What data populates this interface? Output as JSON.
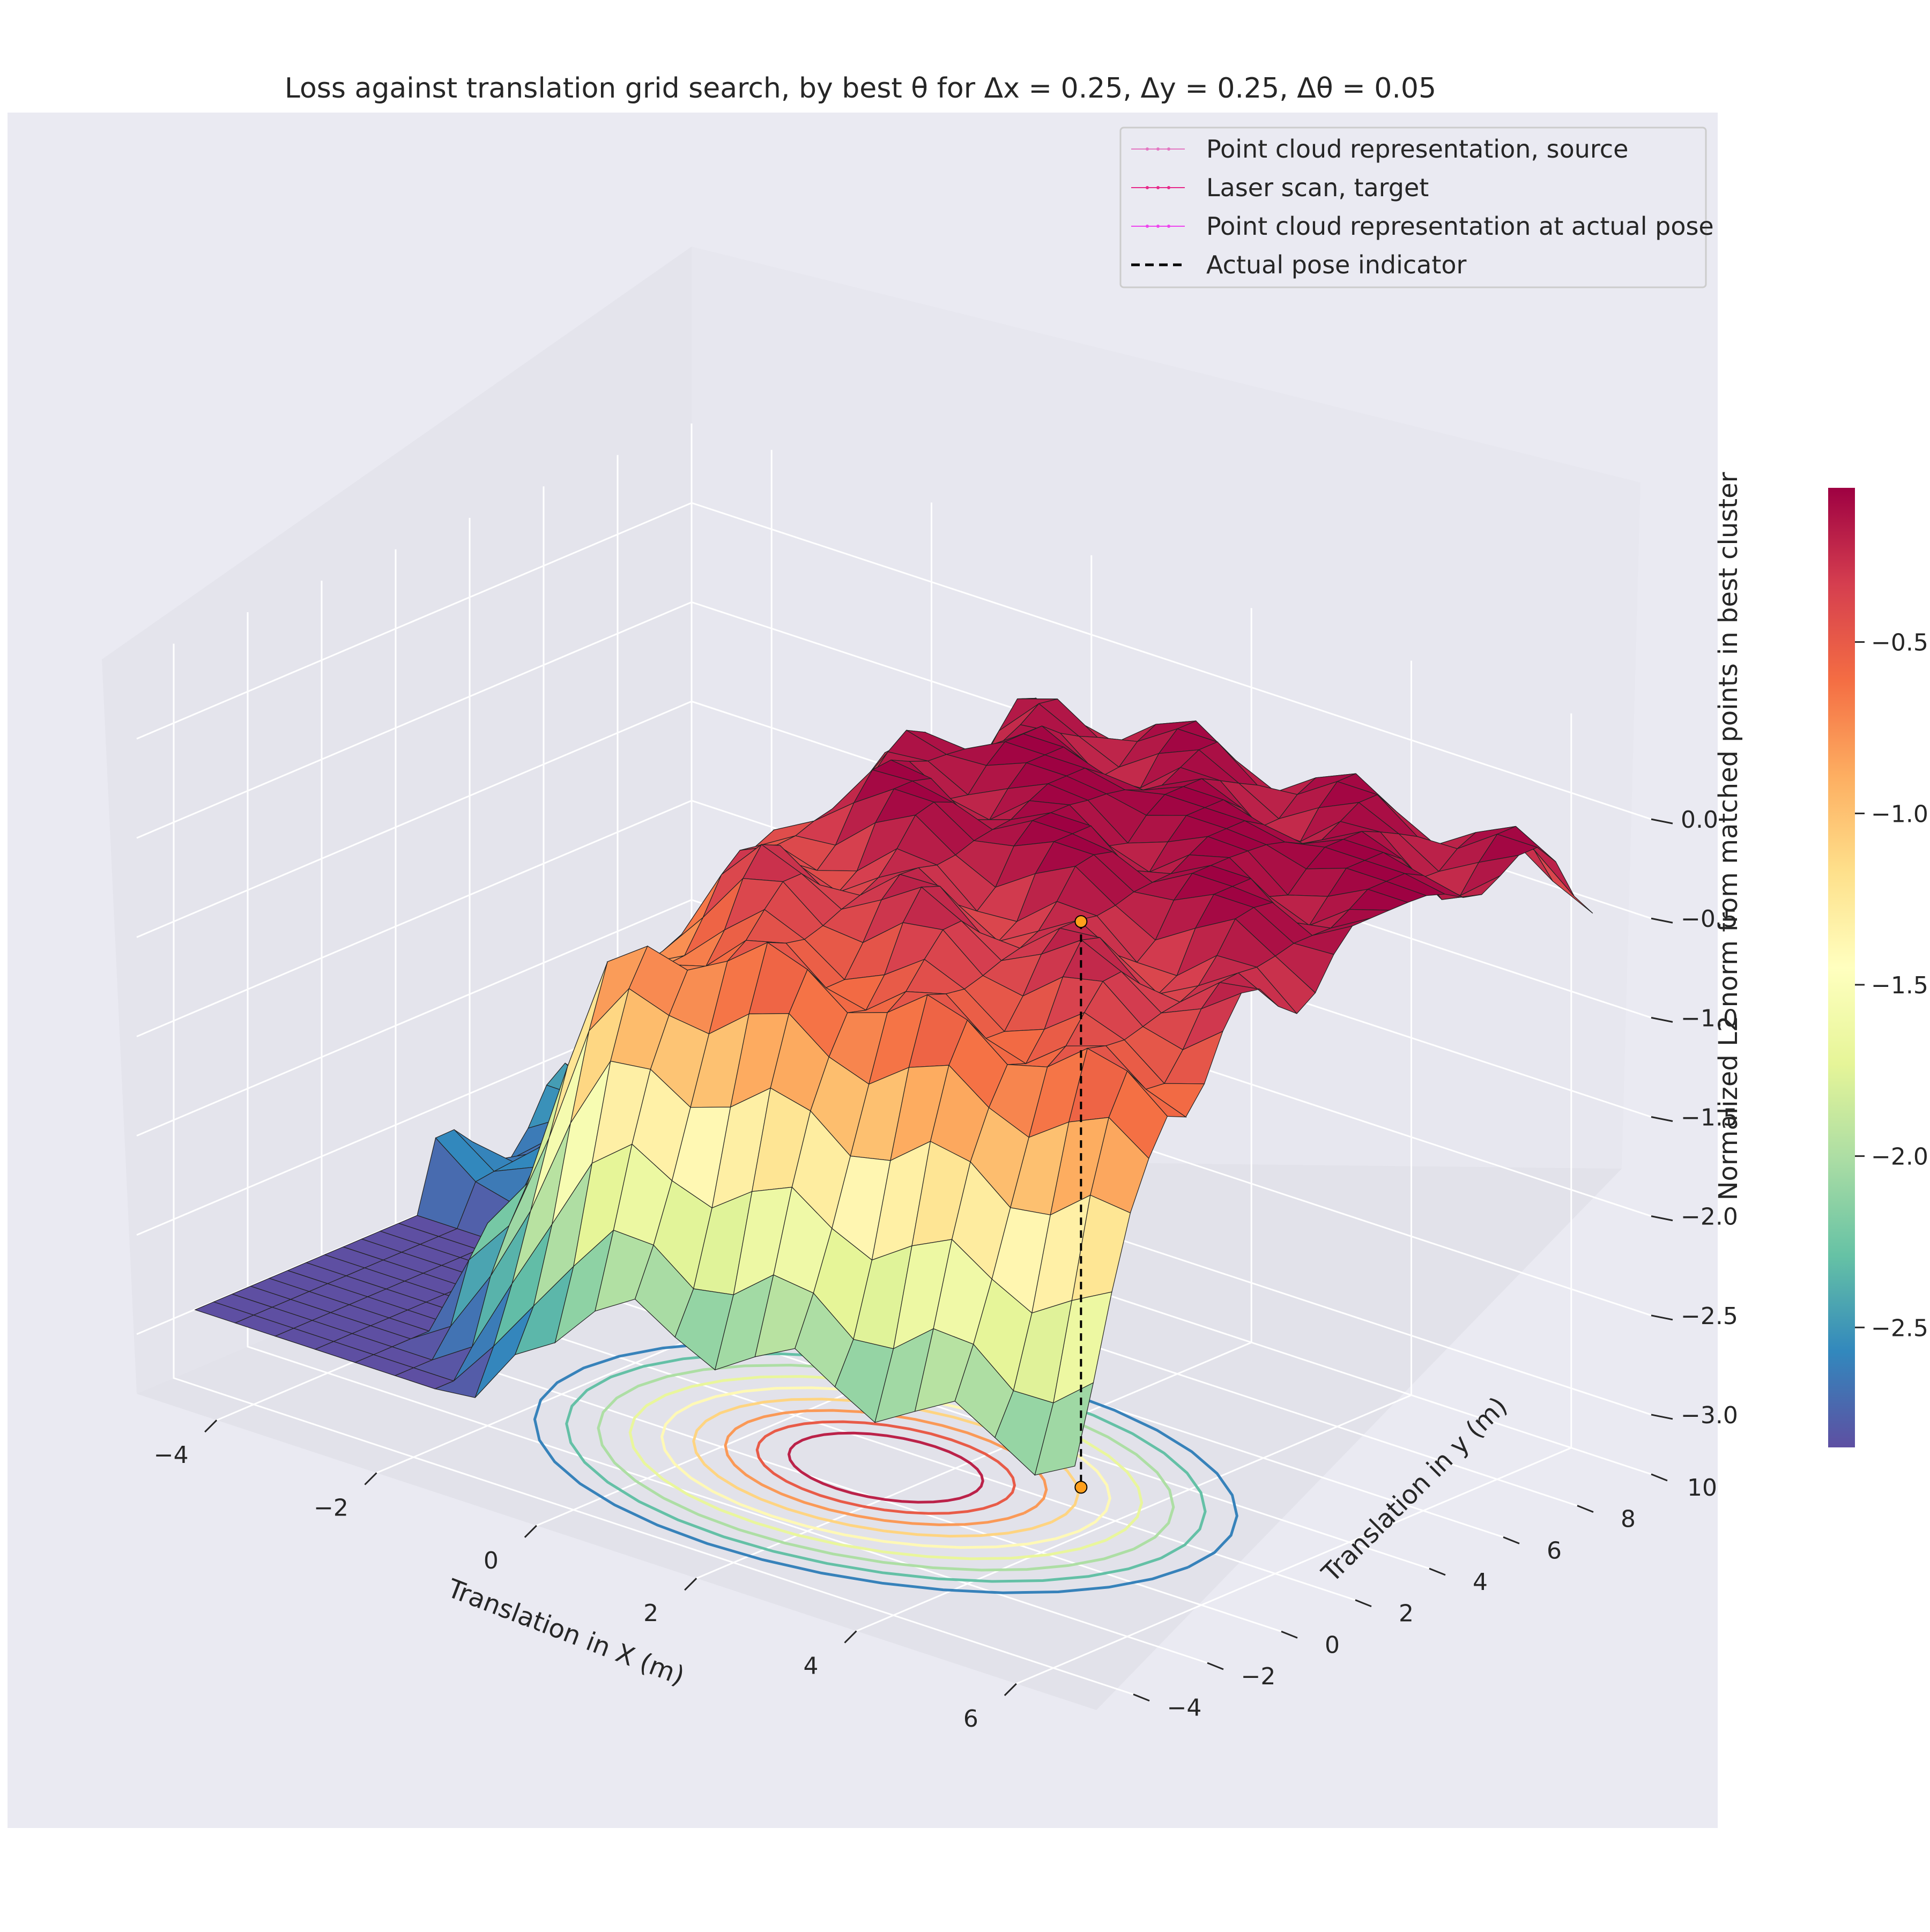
{
  "chart_data": {
    "type": "surface",
    "title": "Loss against translation grid search, by best θ for Δx = 0.25, Δy = 0.25, Δθ = 0.05",
    "xlabel": "Translation in X (m)",
    "ylabel": "Translation in y (m)",
    "zlabel": "Normalized L2 norm from matched points in best cluster",
    "xlim": [
      -5,
      7
    ],
    "ylim": [
      -5,
      10
    ],
    "zlim": [
      -3.3,
      0.4
    ],
    "x_ticks": [
      "−4",
      "−2",
      "0",
      "2",
      "4",
      "6"
    ],
    "y_ticks": [
      "−4",
      "−2",
      "0",
      "2",
      "4",
      "6",
      "8",
      "10"
    ],
    "z_ticks": [
      "−3.0",
      "−2.5",
      "−2.0",
      "−1.5",
      "−1.0",
      "−0.5",
      "0.0"
    ],
    "colorbar": {
      "label": "",
      "ticks": [
        "−0.5",
        "−1.0",
        "−1.5",
        "−2.0",
        "−2.5"
      ],
      "range": [
        -2.85,
        -0.05
      ],
      "colormap": [
        "#5e4fa2",
        "#3288bd",
        "#66c2a5",
        "#abdda4",
        "#e6f598",
        "#ffffbf",
        "#fee08b",
        "#fdae61",
        "#f46d43",
        "#d53e4f",
        "#9e0142"
      ]
    },
    "legend": {
      "placement": "top-right",
      "entries": [
        {
          "label": "Point cloud representation, source",
          "color": "#e377c2",
          "style": "thin-line-dots"
        },
        {
          "label": "Laser scan, target",
          "color": "#e7298a",
          "style": "thin-line-dots"
        },
        {
          "label": "Point cloud representation at actual pose",
          "color": "#ee44ee",
          "style": "line-dots"
        },
        {
          "label": "Actual pose indicator",
          "color": "#000000",
          "style": "dashed"
        }
      ]
    },
    "actual_pose": {
      "x": 3.2,
      "y": 2.8,
      "z_top": -0.45,
      "z_bottom": -3.3
    },
    "surface_summary": {
      "plateau_value": -0.05,
      "floor_value": -2.85,
      "floor_region": "x < -2, y < 2",
      "peak_region": "x 0 to 6, y 0 to 10",
      "x_step": 0.25,
      "y_step": 0.25
    },
    "grid": true,
    "background": "#eaeaf2"
  }
}
